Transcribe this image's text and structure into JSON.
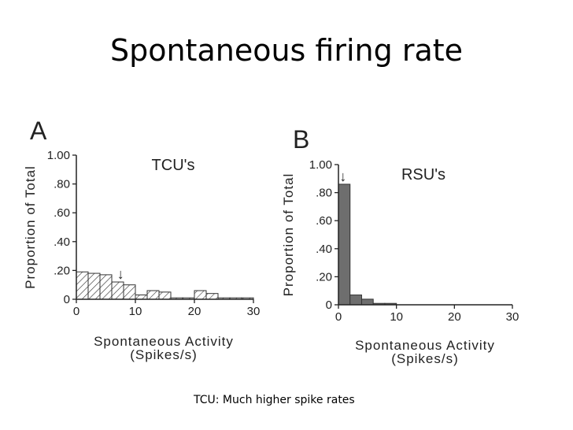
{
  "slide": {
    "title": "Spontaneous firing rate",
    "caption": "TCU: Much higher spike rates"
  },
  "colors": {
    "hatch_stroke": "#333333",
    "fill_dark": "#6e6e6e",
    "axis": "#222222"
  },
  "chart_data": [
    {
      "type": "bar",
      "panel_label": "A",
      "title": "TCU's",
      "xlabel": "Spontaneous Activity",
      "xlabel_unit": "(Spikes/s)",
      "ylabel": "Proportion of Total",
      "xlim": [
        0,
        30
      ],
      "ylim": [
        0,
        1.0
      ],
      "x_ticks": [
        "0",
        "10",
        "20",
        "30"
      ],
      "y_ticks": [
        "0",
        ".20",
        ".40",
        ".60",
        ".80",
        "1.00"
      ],
      "bar_style": "hatched",
      "bin_width": 2,
      "bins": [
        0,
        2,
        4,
        6,
        8,
        10,
        12,
        14,
        16,
        18,
        20,
        22,
        24,
        26,
        28
      ],
      "values": [
        0.19,
        0.18,
        0.17,
        0.12,
        0.1,
        0.03,
        0.06,
        0.05,
        0.01,
        0.01,
        0.06,
        0.04,
        0.01,
        0.01,
        0.01
      ],
      "annotation": {
        "symbol": "↓",
        "x": 7.5,
        "y": 0.12
      }
    },
    {
      "type": "bar",
      "panel_label": "B",
      "title": "RSU's",
      "xlabel": "Spontaneous Activity",
      "xlabel_unit": "(Spikes/s)",
      "ylabel": "Proportion of Total",
      "xlim": [
        0,
        30
      ],
      "ylim": [
        0,
        1.0
      ],
      "x_ticks": [
        "0",
        "10",
        "20",
        "30"
      ],
      "y_ticks": [
        "0",
        ".20",
        ".40",
        ".60",
        ".80",
        "1.00"
      ],
      "bar_style": "solid",
      "bin_width": 2,
      "bins": [
        0,
        2,
        4,
        6,
        8
      ],
      "values": [
        0.86,
        0.07,
        0.04,
        0.01,
        0.01
      ],
      "annotation": {
        "symbol": "↓",
        "x": 0.8,
        "y": 0.86
      }
    }
  ]
}
